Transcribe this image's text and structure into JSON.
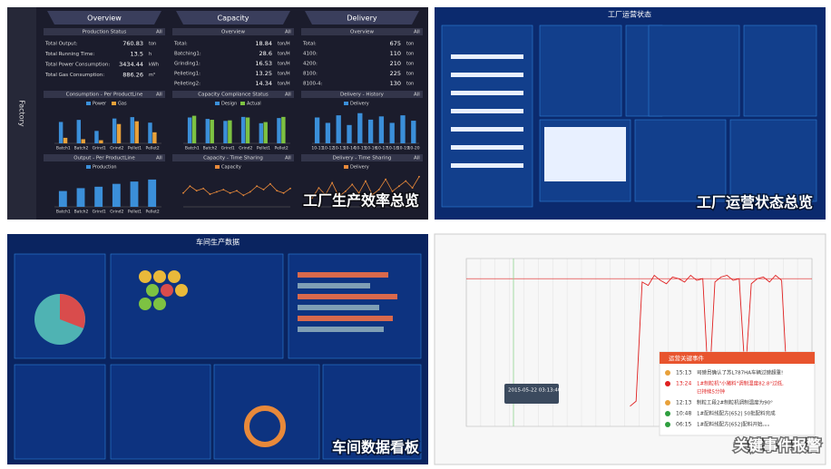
{
  "efficiency": {
    "sidebar": "Factory",
    "all_label": "All",
    "caption": "工厂生产效率总览",
    "columns": [
      {
        "header": "Overview",
        "section": "Production Status",
        "rows": [
          {
            "label": "Total Output:",
            "value": 760.83,
            "unit": "ton"
          },
          {
            "label": "Total Running Time:",
            "value": 13.5,
            "unit": "h"
          },
          {
            "label": "Total Power Consumption:",
            "value": 3434.44,
            "unit": "kWh"
          },
          {
            "label": "Total Gas Consumption:",
            "value": 886.26,
            "unit": "m³"
          }
        ]
      },
      {
        "header": "Capacity",
        "section": "Overview",
        "rows": [
          {
            "label": "Total:",
            "value": 18.84,
            "unit": "ton/H"
          },
          {
            "label": "Batching1:",
            "value": 28.6,
            "unit": "ton/H"
          },
          {
            "label": "Grinding1:",
            "value": 16.53,
            "unit": "ton/H"
          },
          {
            "label": "Pelleting1:",
            "value": 13.25,
            "unit": "ton/H"
          },
          {
            "label": "Pelleting2:",
            "value": 14.34,
            "unit": "ton/H"
          }
        ]
      },
      {
        "header": "Delivery",
        "section": "Overview",
        "rows": [
          {
            "label": "Total:",
            "value": 675,
            "unit": "ton"
          },
          {
            "label": "4100:",
            "value": 110,
            "unit": "ton"
          },
          {
            "label": "4200:",
            "value": 210,
            "unit": "ton"
          },
          {
            "label": "8100:",
            "value": 225,
            "unit": "ton"
          },
          {
            "label": "8100-4:",
            "value": 130,
            "unit": "ton"
          }
        ]
      }
    ],
    "charts": [
      {
        "type": "bar",
        "title": "Consumption - Per ProductLine",
        "categories": [
          "Batch1",
          "Batch2",
          "Grind1",
          "Grind2",
          "Pellet1",
          "Pellet2"
        ],
        "ylim": [
          0,
          1000
        ],
        "series": [
          {
            "name": "Power",
            "color": "#3b8fd9",
            "values": [
              620,
              680,
              360,
              720,
              760,
              600
            ]
          },
          {
            "name": "Gas",
            "color": "#e8a13a",
            "values": [
              160,
              120,
              90,
              560,
              640,
              320
            ]
          }
        ]
      },
      {
        "type": "bar",
        "title": "Capacity Compliance Status",
        "categories": [
          "Batch1",
          "Batch2",
          "Grind1",
          "Grind2",
          "Pellet1",
          "Pellet2"
        ],
        "ylim": [
          0,
          120
        ],
        "series": [
          {
            "name": "Design",
            "color": "#3b8fd9",
            "values": [
              90,
              85,
              78,
              92,
              70,
              88
            ]
          },
          {
            "name": "Actual",
            "color": "#7dc242",
            "values": [
              96,
              82,
              80,
              90,
              74,
              92
            ]
          }
        ]
      },
      {
        "type": "bar",
        "title": "Delivery - History",
        "categories": [
          "10-11",
          "10-12",
          "10-13",
          "10-14",
          "10-15",
          "10-16",
          "10-17",
          "10-18",
          "10-19",
          "10-20"
        ],
        "ylim": [
          0,
          160
        ],
        "series": [
          {
            "name": "Delivery",
            "color": "#3b8fd9",
            "values": [
              120,
              95,
              130,
              85,
              140,
              110,
              125,
              95,
              130,
              105
            ]
          }
        ]
      },
      {
        "type": "bar",
        "title": "Output - Per ProductLine",
        "categories": [
          "Batch1",
          "Batch2",
          "Grind1",
          "Grind2",
          "Pellet1",
          "Pellet2"
        ],
        "ylim": [
          0,
          120
        ],
        "series": [
          {
            "name": "Production",
            "color": "#3b8fd9",
            "values": [
              55,
              65,
              70,
              80,
              88,
              95
            ]
          }
        ]
      },
      {
        "type": "line",
        "title": "Capacity - Time Sharing",
        "ylim": [
          0,
          30
        ],
        "series": [
          {
            "name": "Capacity",
            "color": "#e8893a",
            "values": [
              12,
              18,
              14,
              16,
              11,
              13,
              15,
              12,
              14,
              10,
              13,
              18,
              15,
              20,
              14,
              12,
              16
            ]
          }
        ]
      },
      {
        "type": "line",
        "title": "Delivery - Time Sharing",
        "ylim": [
          0,
          40
        ],
        "series": [
          {
            "name": "Delivery",
            "color": "#e8893a",
            "values": [
              10,
              22,
              14,
              28,
              12,
              18,
              26,
              16,
              30,
              14,
              20,
              32,
              18,
              24,
              30,
              22,
              35
            ]
          }
        ]
      }
    ]
  },
  "operation": {
    "title": "工厂运营状态",
    "caption": "工厂运营状态总览"
  },
  "workshop": {
    "title": "车间生产数据",
    "caption": "车间数据看板"
  },
  "events": {
    "caption": "关键事件报警",
    "tooltip": "2015-05-22 03:13:40",
    "panel_title": "运营关键事件",
    "items": [
      {
        "time": "15:13",
        "lines": [
          "司磅员确认了苏L787HA车辆过磅超重!"
        ]
      },
      {
        "time": "13:24",
        "lines": [
          "1#制粒机\"小猪料\"调制温度82.8°过低,",
          "已持续5分钟"
        ]
      },
      {
        "time": "12:13",
        "lines": [
          "制粒工段2#制粒机调制温度为90°"
        ]
      },
      {
        "time": "10:48",
        "lines": [
          "1#配料线配方[652] 50批配料完成"
        ]
      },
      {
        "time": "06:15",
        "lines": [
          "1#配料线配方[652]配料开始。。。"
        ]
      }
    ],
    "chart": {
      "type": "line",
      "ylim": [
        0,
        100
      ],
      "threshold": 88,
      "color": "#e02020",
      "values": [
        null,
        null,
        null,
        null,
        null,
        null,
        null,
        null,
        null,
        null,
        null,
        null,
        null,
        null,
        null,
        null,
        null,
        null,
        null,
        null,
        null,
        null,
        null,
        null,
        null,
        null,
        null,
        12,
        15,
        86,
        84,
        90,
        87,
        85,
        89,
        88,
        86,
        90,
        87,
        88,
        20,
        86,
        89,
        90,
        87,
        88,
        30,
        85,
        88,
        89,
        86,
        90,
        87,
        20,
        22,
        null,
        null,
        null
      ]
    }
  }
}
